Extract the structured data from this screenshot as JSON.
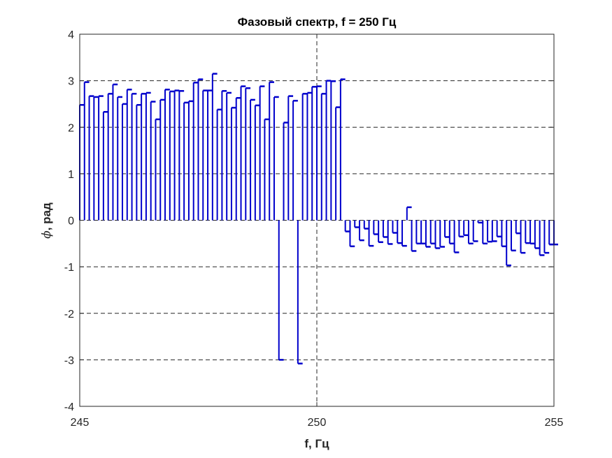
{
  "chart_data": {
    "type": "bar",
    "title": "Фазовый спектр, f = 250 Гц",
    "xlabel": "f, Гц",
    "ylabel_symbol": "ϕ",
    "ylabel_text": ", рад",
    "xlim": [
      245,
      255
    ],
    "ylim": [
      -4,
      4
    ],
    "xticks": [
      245,
      250,
      255
    ],
    "xtick_labels": [
      "245",
      "250",
      "255"
    ],
    "yticks": [
      -4,
      -3,
      -2,
      -1,
      0,
      1,
      2,
      3,
      4
    ],
    "ytick_labels": [
      "-4",
      "-3",
      "-2",
      "-1",
      "0",
      "1",
      "2",
      "3",
      "4"
    ],
    "grid": true,
    "series_color": "#0000cc",
    "x": [
      245.0,
      245.1,
      245.2,
      245.3,
      245.4,
      245.5,
      245.6,
      245.7,
      245.8,
      245.9,
      246.0,
      246.1,
      246.2,
      246.3,
      246.4,
      246.5,
      246.6,
      246.7,
      246.8,
      246.9,
      247.0,
      247.1,
      247.2,
      247.3,
      247.4,
      247.5,
      247.6,
      247.7,
      247.8,
      247.9,
      248.0,
      248.1,
      248.2,
      248.3,
      248.4,
      248.5,
      248.6,
      248.7,
      248.8,
      248.9,
      249.0,
      249.1,
      249.2,
      249.3,
      249.4,
      249.5,
      249.6,
      249.7,
      249.8,
      249.9,
      250.0,
      250.1,
      250.2,
      250.3,
      250.4,
      250.5,
      250.6,
      250.7,
      250.8,
      250.9,
      251.0,
      251.1,
      251.2,
      251.3,
      251.4,
      251.5,
      251.6,
      251.7,
      251.8,
      251.9,
      252.0,
      252.1,
      252.2,
      252.3,
      252.4,
      252.5,
      252.6,
      252.7,
      252.8,
      252.9,
      253.0,
      253.1,
      253.2,
      253.3,
      253.4,
      253.5,
      253.6,
      253.7,
      253.8,
      253.9,
      254.0,
      254.1,
      254.2,
      254.3,
      254.4,
      254.5,
      254.6,
      254.7,
      254.8,
      254.9,
      255.0
    ],
    "values": [
      2.48,
      2.97,
      2.67,
      2.65,
      2.67,
      2.33,
      2.72,
      2.92,
      2.65,
      2.5,
      2.81,
      2.72,
      2.48,
      2.72,
      2.74,
      2.55,
      2.17,
      2.59,
      2.81,
      2.77,
      2.79,
      2.78,
      2.53,
      2.56,
      2.96,
      3.03,
      2.79,
      2.79,
      3.15,
      2.38,
      2.78,
      2.74,
      2.42,
      2.63,
      2.88,
      2.84,
      2.59,
      2.47,
      2.88,
      2.17,
      2.97,
      2.65,
      -3.0,
      2.1,
      2.67,
      2.57,
      -3.08,
      2.72,
      2.74,
      2.87,
      2.88,
      2.72,
      3.0,
      2.99,
      2.43,
      3.03,
      -0.24,
      -0.56,
      -0.15,
      -0.43,
      -0.18,
      -0.55,
      -0.3,
      -0.47,
      -0.36,
      -0.51,
      -0.27,
      -0.49,
      -0.55,
      0.28,
      -0.66,
      -0.5,
      -0.5,
      -0.57,
      -0.5,
      -0.6,
      -0.57,
      -0.36,
      -0.5,
      -0.69,
      -0.35,
      -0.32,
      -0.5,
      -0.45,
      -0.05,
      -0.5,
      -0.46,
      -0.45,
      -0.35,
      -0.56,
      -0.97,
      -0.65,
      -0.28,
      -0.7,
      -0.49,
      -0.5,
      -0.6,
      -0.75,
      -0.7,
      -0.52,
      -0.52
    ]
  }
}
